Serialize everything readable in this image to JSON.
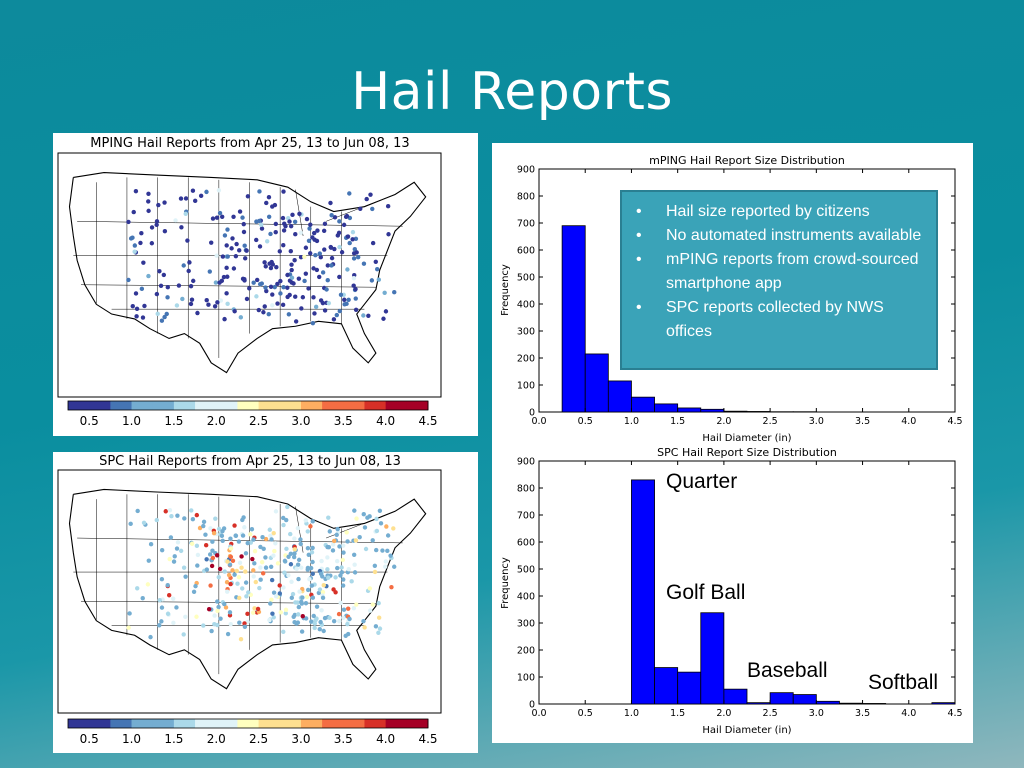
{
  "slide": {
    "title": "Hail Reports"
  },
  "info_box": {
    "items": [
      "Hail size reported by citizens",
      "No automated instruments available",
      "mPING reports from crowd-sourced smartphone app",
      "SPC reports collected by NWS offices"
    ]
  },
  "annotations": {
    "quarter": "Quarter",
    "golf_ball": "Golf Ball",
    "baseball": "Baseball",
    "softball": "Softball"
  },
  "colors": {
    "bar_fill": "#0000ff",
    "colorbar": [
      "#313695",
      "#4575b4",
      "#74add1",
      "#abd9e9",
      "#e0f3f8",
      "#ffffbf",
      "#fee090",
      "#fdae61",
      "#f46d43",
      "#d73027",
      "#a50026"
    ]
  },
  "chart_data": [
    {
      "type": "scatter",
      "title": "MPING Hail Reports from Apr 25, 13 to Jun 08, 13",
      "colorbar_ticks": [
        "0.5",
        "1.0",
        "1.5",
        "2.0",
        "2.5",
        "3.0",
        "3.5",
        "4.0",
        "4.5"
      ],
      "colorbar_range": [
        0.25,
        4.5
      ]
    },
    {
      "type": "scatter",
      "title": "SPC Hail Reports from Apr 25, 13 to Jun 08, 13",
      "colorbar_ticks": [
        "0.5",
        "1.0",
        "1.5",
        "2.0",
        "2.5",
        "3.0",
        "3.5",
        "4.0",
        "4.5"
      ],
      "colorbar_range": [
        0.25,
        4.5
      ]
    },
    {
      "type": "bar",
      "title": "mPING Hail Report Size Distribution",
      "xlabel": "Hail Diameter (in)",
      "ylabel": "Frequency",
      "xlim": [
        0,
        4.5
      ],
      "ylim": [
        0,
        900
      ],
      "xticks": [
        "0.0",
        "0.5",
        "1.0",
        "1.5",
        "2.0",
        "2.5",
        "3.0",
        "3.5",
        "4.0",
        "4.5"
      ],
      "yticks": [
        "0",
        "100",
        "200",
        "300",
        "400",
        "500",
        "600",
        "700",
        "800",
        "900"
      ],
      "bin_width": 0.25,
      "bins": [
        {
          "x": 0.25,
          "value": 690
        },
        {
          "x": 0.5,
          "value": 215
        },
        {
          "x": 0.75,
          "value": 115
        },
        {
          "x": 1.0,
          "value": 55
        },
        {
          "x": 1.25,
          "value": 30
        },
        {
          "x": 1.5,
          "value": 15
        },
        {
          "x": 1.75,
          "value": 10
        },
        {
          "x": 2.0,
          "value": 3
        },
        {
          "x": 2.25,
          "value": 2
        },
        {
          "x": 2.5,
          "value": 1
        },
        {
          "x": 2.75,
          "value": 1
        }
      ]
    },
    {
      "type": "bar",
      "title": "SPC Hail Report Size Distribution",
      "xlabel": "Hail Diameter (in)",
      "ylabel": "Frequency",
      "xlim": [
        0,
        4.5
      ],
      "ylim": [
        0,
        900
      ],
      "xticks": [
        "0.0",
        "0.5",
        "1.0",
        "1.5",
        "2.0",
        "2.5",
        "3.0",
        "3.5",
        "4.0",
        "4.5"
      ],
      "yticks": [
        "0",
        "100",
        "200",
        "300",
        "400",
        "500",
        "600",
        "700",
        "800",
        "900"
      ],
      "bin_width": 0.25,
      "bins": [
        {
          "x": 1.0,
          "value": 830
        },
        {
          "x": 1.25,
          "value": 135
        },
        {
          "x": 1.5,
          "value": 118
        },
        {
          "x": 1.75,
          "value": 338
        },
        {
          "x": 2.0,
          "value": 55
        },
        {
          "x": 2.25,
          "value": 5
        },
        {
          "x": 2.5,
          "value": 42
        },
        {
          "x": 2.75,
          "value": 35
        },
        {
          "x": 3.0,
          "value": 10
        },
        {
          "x": 3.25,
          "value": 3
        },
        {
          "x": 3.5,
          "value": 2
        },
        {
          "x": 4.25,
          "value": 5
        }
      ]
    }
  ]
}
